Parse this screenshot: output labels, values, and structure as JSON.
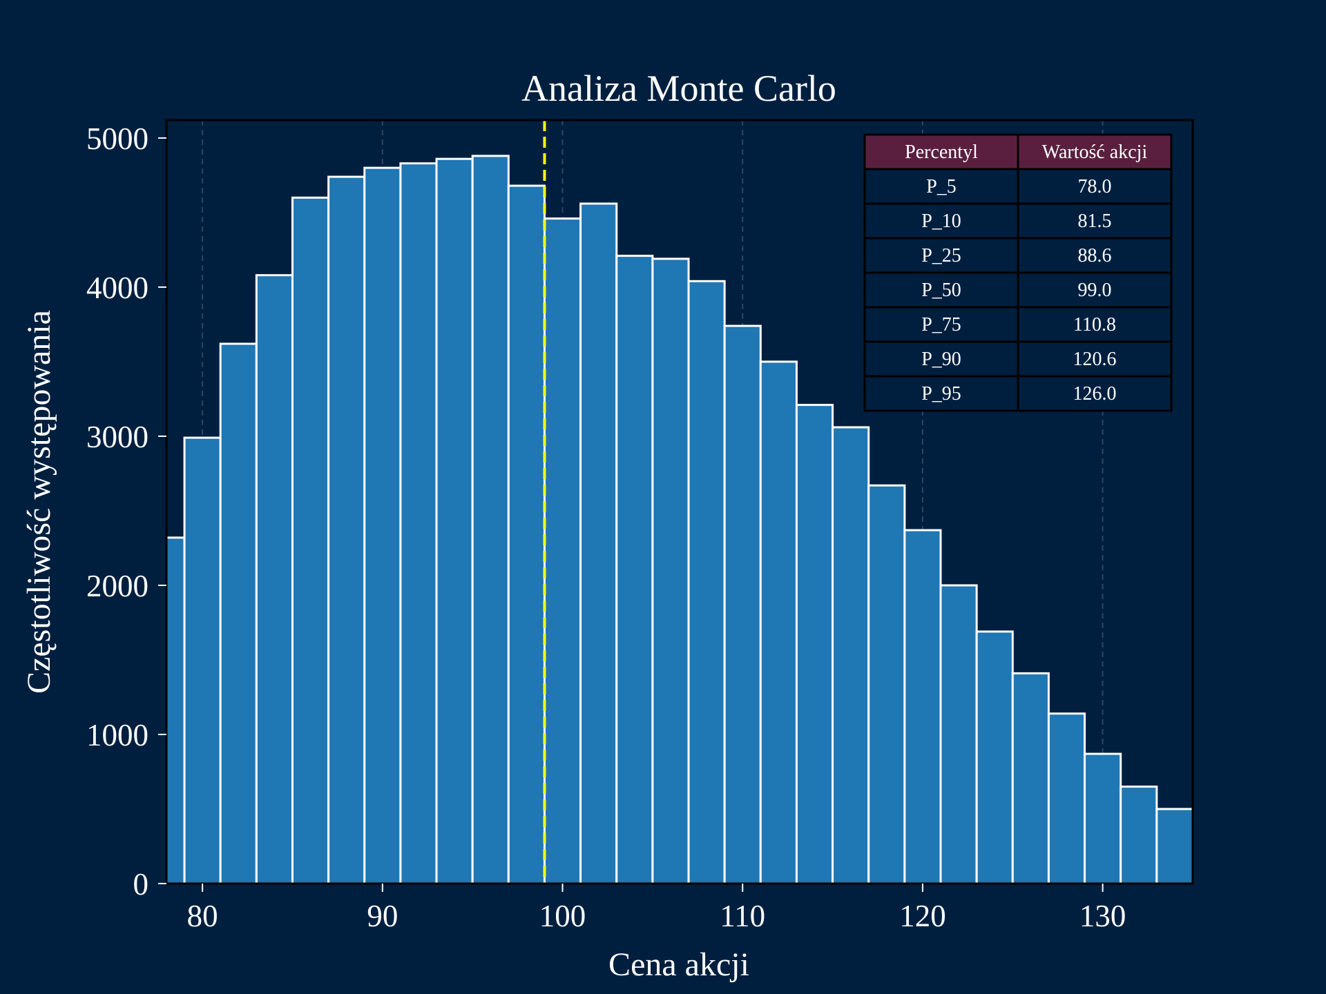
{
  "chart_data": {
    "type": "bar",
    "title": "Analiza Monte Carlo",
    "xlabel": "Cena akcji",
    "ylabel": "Częstotliwość występowania",
    "xlim": [
      78,
      135
    ],
    "ylim": [
      0,
      5120
    ],
    "xticks": [
      80,
      90,
      100,
      110,
      120,
      130
    ],
    "yticks": [
      0,
      1000,
      2000,
      3000,
      4000,
      5000
    ],
    "bin_start": 77.0,
    "bin_width": 2.0,
    "values": [
      2320,
      2990,
      3620,
      4080,
      4600,
      4740,
      4800,
      4830,
      4860,
      4880,
      4680,
      4460,
      4560,
      4210,
      4190,
      4040,
      3740,
      3500,
      3210,
      3060,
      2670,
      2370,
      2000,
      1690,
      1410,
      1140,
      870,
      650,
      500
    ],
    "median_line": 99.0,
    "grid": "x-only-dashed",
    "colors": {
      "background": "#001f3f",
      "bar_fill": "#1f77b4",
      "bar_edge": "#ffffff",
      "median_line": "#ffff00",
      "table_header": "#5a1f3f",
      "table_body": "#001f3f",
      "table_border": "#000000"
    },
    "table": {
      "headers": [
        "Percentyl",
        "Wartość akcji"
      ],
      "rows": [
        [
          "P_5",
          "78.0"
        ],
        [
          "P_10",
          "81.5"
        ],
        [
          "P_25",
          "88.6"
        ],
        [
          "P_50",
          "99.0"
        ],
        [
          "P_75",
          "110.8"
        ],
        [
          "P_90",
          "120.6"
        ],
        [
          "P_95",
          "126.0"
        ]
      ],
      "placement": "top-right"
    }
  }
}
